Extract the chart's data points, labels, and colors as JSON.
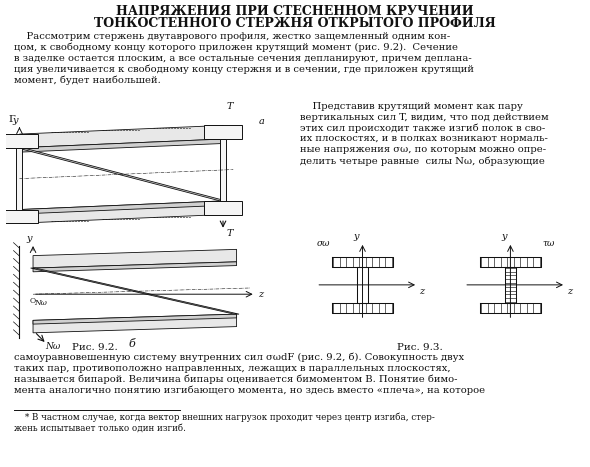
{
  "title_line1": "НАПРЯЖЕНИЯ ПРИ СТЕСНЕННОМ КРУЧЕНИИ",
  "title_line2": "ТОНКОСТЕННОГО СТЕРЖНЯ ОТКРЫТОГО ПРОФИЛЯ",
  "para1_lines": [
    "    Рассмотрим стержень двутаврового профиля, жестко защемленный одним кон-",
    "цом, к свободному концу которого приложен крутящий момент (рис. 9.2).  Сечение",
    "в заделке остается плоским, а все остальные сечения депланируют, причем деплана-",
    "ция увеличивается к свободному концу стержня и в сечении, где приложен крутящий",
    "момент, будет наибольшей."
  ],
  "para2_lines": [
    "    Представив крутящий момент как пару",
    "вертикальных сил T, видим, что под действием",
    "этих сил происходит также изгиб полок в сво-",
    "их плоскостях, и в полках возникают нормаль-",
    "ные напряжения σω, по которым можно опре-",
    "делить четыре равные  силы Nω, образующие"
  ],
  "para3_lines": [
    "самоуравновешенную систему внутренних сил σωdF (рис. 9.2, б). Совокупность двух",
    "таких пар, противоположно направленных, лежащих в параллельных плоскостях,",
    "называется бипарой. Величина бипары оценивается бимоментом B. Понятие бимо-",
    "мента аналогично понятию изгибающего момента, но здесь вместо «плеча», на которое"
  ],
  "fn_lines": [
    "    * В частном случае, когда вектор внешних нагрузок проходит через центр изгиба, стер-",
    "жень испытывает только один изгиб."
  ],
  "fig92_label": "Рис. 9.2.",
  "fig93_label": "Рис. 9.3."
}
